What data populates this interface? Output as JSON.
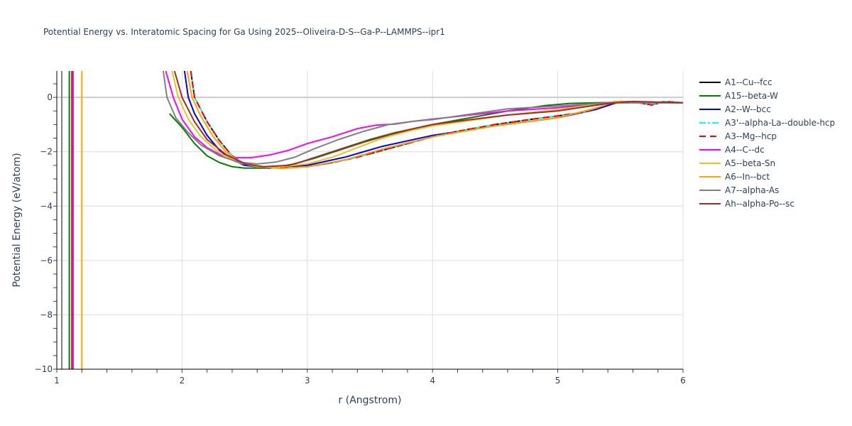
{
  "title": "Potential Energy vs. Interatomic Spacing for Ga Using 2025--Oliveira-D-S--Ga-P--LAMMPS--ipr1",
  "chart_data": {
    "type": "line",
    "title": "Potential Energy vs. Interatomic Spacing for Ga Using 2025--Oliveira-D-S--Ga-P--LAMMPS--ipr1",
    "xlabel": "r (Angstrom)",
    "ylabel": "Potential Energy (eV/atom)",
    "xlim": [
      1,
      6
    ],
    "ylim": [
      -10,
      0.97
    ],
    "x_ticks": [
      1,
      2,
      3,
      4,
      5,
      6
    ],
    "y_ticks": [
      0,
      -2,
      -4,
      -6,
      -8,
      -10
    ],
    "y_tick_labels": [
      "0",
      "−2",
      "−4",
      "−6",
      "−8",
      "−10"
    ],
    "grid": true,
    "legend_position": "right",
    "series": [
      {
        "name": "A1--Cu--fcc",
        "color": "#000000",
        "dash": "solid",
        "points": [
          [
            2.07,
            0.97
          ],
          [
            2.1,
            0
          ],
          [
            2.2,
            -0.9
          ],
          [
            2.3,
            -1.6
          ],
          [
            2.4,
            -2.15
          ],
          [
            2.5,
            -2.45
          ],
          [
            2.6,
            -2.55
          ],
          [
            2.8,
            -2.6
          ],
          [
            3.0,
            -2.55
          ],
          [
            3.2,
            -2.4
          ],
          [
            3.4,
            -2.2
          ],
          [
            3.6,
            -1.95
          ],
          [
            3.8,
            -1.7
          ],
          [
            4.0,
            -1.45
          ],
          [
            4.2,
            -1.25
          ],
          [
            4.5,
            -1.0
          ],
          [
            4.8,
            -0.8
          ],
          [
            5.0,
            -0.68
          ],
          [
            5.2,
            -0.55
          ],
          [
            5.4,
            -0.25
          ],
          [
            5.5,
            -0.15
          ],
          [
            5.65,
            -0.2
          ],
          [
            5.75,
            -0.28
          ],
          [
            5.85,
            -0.15
          ],
          [
            6.0,
            -0.2
          ]
        ]
      },
      {
        "name": "A15--beta-W",
        "color": "#008000",
        "dash": "solid",
        "vertical_x": 1.1,
        "points": [
          [
            1.9,
            -0.6
          ],
          [
            2.0,
            -1.1
          ],
          [
            2.1,
            -1.7
          ],
          [
            2.2,
            -2.15
          ],
          [
            2.3,
            -2.4
          ],
          [
            2.4,
            -2.55
          ],
          [
            2.5,
            -2.6
          ],
          [
            2.7,
            -2.6
          ],
          [
            2.9,
            -2.45
          ],
          [
            3.1,
            -2.15
          ],
          [
            3.3,
            -1.85
          ],
          [
            3.5,
            -1.55
          ],
          [
            3.7,
            -1.3
          ],
          [
            4.0,
            -1.0
          ],
          [
            4.3,
            -0.75
          ],
          [
            4.6,
            -0.5
          ],
          [
            4.9,
            -0.3
          ],
          [
            5.1,
            -0.22
          ],
          [
            5.5,
            -0.18
          ],
          [
            6.0,
            -0.2
          ]
        ]
      },
      {
        "name": "A2--W--bcc",
        "color": "#0000ff",
        "dash": "solid",
        "points": [
          [
            2.02,
            0.97
          ],
          [
            2.05,
            0
          ],
          [
            2.1,
            -0.6
          ],
          [
            2.2,
            -1.4
          ],
          [
            2.3,
            -1.95
          ],
          [
            2.4,
            -2.3
          ],
          [
            2.5,
            -2.5
          ],
          [
            2.7,
            -2.6
          ],
          [
            3.0,
            -2.5
          ],
          [
            3.3,
            -2.2
          ],
          [
            3.6,
            -1.8
          ],
          [
            4.0,
            -1.4
          ],
          [
            4.5,
            -1.05
          ],
          [
            5.0,
            -0.75
          ],
          [
            5.3,
            -0.45
          ],
          [
            5.5,
            -0.15
          ],
          [
            6.0,
            -0.2
          ]
        ]
      },
      {
        "name": "A3'--alpha-La--double-hcp",
        "color": "#00ffff",
        "dash": "dashdot",
        "points": [
          [
            2.07,
            0.97
          ],
          [
            2.1,
            0
          ],
          [
            2.2,
            -0.9
          ],
          [
            2.3,
            -1.6
          ],
          [
            2.4,
            -2.15
          ],
          [
            2.5,
            -2.45
          ],
          [
            2.6,
            -2.55
          ],
          [
            2.8,
            -2.6
          ],
          [
            3.0,
            -2.55
          ],
          [
            3.2,
            -2.4
          ],
          [
            3.4,
            -2.2
          ],
          [
            3.6,
            -1.95
          ],
          [
            3.8,
            -1.7
          ],
          [
            4.0,
            -1.45
          ],
          [
            4.2,
            -1.25
          ],
          [
            4.5,
            -1.0
          ],
          [
            4.8,
            -0.8
          ],
          [
            5.0,
            -0.68
          ],
          [
            5.2,
            -0.55
          ],
          [
            5.4,
            -0.25
          ],
          [
            5.5,
            -0.15
          ],
          [
            5.65,
            -0.2
          ],
          [
            5.75,
            -0.28
          ],
          [
            5.85,
            -0.15
          ],
          [
            6.0,
            -0.2
          ]
        ]
      },
      {
        "name": "A3--Mg--hcp",
        "color": "#ff0000",
        "dash": "dash",
        "points": [
          [
            2.07,
            0.97
          ],
          [
            2.1,
            0
          ],
          [
            2.2,
            -0.9
          ],
          [
            2.3,
            -1.6
          ],
          [
            2.4,
            -2.15
          ],
          [
            2.5,
            -2.45
          ],
          [
            2.6,
            -2.55
          ],
          [
            2.8,
            -2.6
          ],
          [
            3.0,
            -2.55
          ],
          [
            3.2,
            -2.4
          ],
          [
            3.4,
            -2.2
          ],
          [
            3.6,
            -1.95
          ],
          [
            3.8,
            -1.7
          ],
          [
            4.0,
            -1.45
          ],
          [
            4.2,
            -1.25
          ],
          [
            4.5,
            -1.0
          ],
          [
            4.8,
            -0.8
          ],
          [
            5.0,
            -0.68
          ],
          [
            5.2,
            -0.55
          ],
          [
            5.4,
            -0.25
          ],
          [
            5.5,
            -0.15
          ],
          [
            5.65,
            -0.2
          ],
          [
            5.75,
            -0.28
          ],
          [
            5.85,
            -0.15
          ],
          [
            6.0,
            -0.2
          ]
        ]
      },
      {
        "name": "A4--C--dc",
        "color": "#ff00ff",
        "dash": "solid",
        "vertical_x": 1.13,
        "points": [
          [
            1.87,
            0.97
          ],
          [
            1.93,
            0
          ],
          [
            2.0,
            -0.8
          ],
          [
            2.1,
            -1.45
          ],
          [
            2.2,
            -1.85
          ],
          [
            2.3,
            -2.1
          ],
          [
            2.4,
            -2.22
          ],
          [
            2.55,
            -2.22
          ],
          [
            2.7,
            -2.12
          ],
          [
            2.85,
            -1.95
          ],
          [
            3.0,
            -1.7
          ],
          [
            3.2,
            -1.45
          ],
          [
            3.4,
            -1.15
          ],
          [
            3.55,
            -1.02
          ],
          [
            3.7,
            -0.98
          ],
          [
            3.85,
            -0.88
          ],
          [
            4.0,
            -0.8
          ],
          [
            4.3,
            -0.65
          ],
          [
            4.6,
            -0.5
          ],
          [
            5.0,
            -0.38
          ],
          [
            5.4,
            -0.2
          ],
          [
            6.0,
            -0.2
          ]
        ]
      },
      {
        "name": "A5--beta-Sn",
        "color": "#e6c619",
        "dash": "solid",
        "points": [
          [
            1.92,
            0.97
          ],
          [
            1.97,
            0
          ],
          [
            2.05,
            -0.8
          ],
          [
            2.15,
            -1.45
          ],
          [
            2.3,
            -2.05
          ],
          [
            2.45,
            -2.4
          ],
          [
            2.6,
            -2.55
          ],
          [
            2.8,
            -2.55
          ],
          [
            3.0,
            -2.45
          ],
          [
            3.2,
            -2.2
          ],
          [
            3.4,
            -1.85
          ],
          [
            3.6,
            -1.5
          ],
          [
            3.8,
            -1.25
          ],
          [
            4.0,
            -1.05
          ],
          [
            4.3,
            -0.85
          ],
          [
            4.6,
            -0.65
          ],
          [
            5.0,
            -0.45
          ],
          [
            5.4,
            -0.2
          ],
          [
            6.0,
            -0.2
          ]
        ]
      },
      {
        "name": "A6--In--bct",
        "color": "#ffa500",
        "dash": "solid",
        "vertical_x": 1.2,
        "points": [
          [
            2.04,
            0.97
          ],
          [
            2.08,
            0
          ],
          [
            2.15,
            -0.7
          ],
          [
            2.25,
            -1.45
          ],
          [
            2.35,
            -2.0
          ],
          [
            2.45,
            -2.35
          ],
          [
            2.6,
            -2.55
          ],
          [
            2.8,
            -2.62
          ],
          [
            3.0,
            -2.55
          ],
          [
            3.3,
            -2.3
          ],
          [
            3.6,
            -1.9
          ],
          [
            4.0,
            -1.45
          ],
          [
            4.5,
            -1.05
          ],
          [
            5.0,
            -0.75
          ],
          [
            5.3,
            -0.4
          ],
          [
            5.45,
            -0.15
          ],
          [
            6.0,
            -0.2
          ]
        ]
      },
      {
        "name": "A7--alpha-As",
        "color": "#808080",
        "dash": "solid",
        "vertical_x": 1.04,
        "points": [
          [
            1.85,
            0.97
          ],
          [
            1.88,
            0
          ],
          [
            1.95,
            -0.75
          ],
          [
            2.05,
            -1.3
          ],
          [
            2.15,
            -1.75
          ],
          [
            2.3,
            -2.15
          ],
          [
            2.45,
            -2.38
          ],
          [
            2.6,
            -2.45
          ],
          [
            2.75,
            -2.38
          ],
          [
            2.9,
            -2.2
          ],
          [
            3.05,
            -1.9
          ],
          [
            3.25,
            -1.55
          ],
          [
            3.45,
            -1.25
          ],
          [
            3.65,
            -1.0
          ],
          [
            3.85,
            -0.88
          ],
          [
            4.0,
            -0.82
          ],
          [
            4.3,
            -0.62
          ],
          [
            4.6,
            -0.42
          ],
          [
            5.0,
            -0.32
          ],
          [
            5.4,
            -0.2
          ],
          [
            6.0,
            -0.2
          ]
        ]
      },
      {
        "name": "Ah--alpha-Po--sc",
        "color": "#a52a2a",
        "dash": "solid",
        "vertical_x": 1.12,
        "points": [
          [
            1.94,
            0.97
          ],
          [
            2.0,
            0
          ],
          [
            2.1,
            -0.9
          ],
          [
            2.2,
            -1.55
          ],
          [
            2.35,
            -2.1
          ],
          [
            2.5,
            -2.45
          ],
          [
            2.65,
            -2.55
          ],
          [
            2.85,
            -2.5
          ],
          [
            3.05,
            -2.25
          ],
          [
            3.25,
            -1.95
          ],
          [
            3.45,
            -1.65
          ],
          [
            3.65,
            -1.38
          ],
          [
            3.85,
            -1.15
          ],
          [
            4.0,
            -1.0
          ],
          [
            4.3,
            -0.82
          ],
          [
            4.6,
            -0.65
          ],
          [
            5.0,
            -0.5
          ],
          [
            5.4,
            -0.22
          ],
          [
            5.6,
            -0.15
          ],
          [
            6.0,
            -0.2
          ]
        ]
      }
    ]
  },
  "legend": [
    {
      "label": "A1--Cu--fcc",
      "color": "#000000",
      "dash": "solid"
    },
    {
      "label": "A15--beta-W",
      "color": "#008000",
      "dash": "solid"
    },
    {
      "label": "A2--W--bcc",
      "color": "#0000ff",
      "dash": "solid"
    },
    {
      "label": "A3'--alpha-La--double-hcp",
      "color": "#00ffff",
      "dash": "dashdot"
    },
    {
      "label": "A3--Mg--hcp",
      "color": "#ff0000",
      "dash": "dash"
    },
    {
      "label": "A4--C--dc",
      "color": "#ff00ff",
      "dash": "solid"
    },
    {
      "label": "A5--beta-Sn",
      "color": "#e6c619",
      "dash": "solid"
    },
    {
      "label": "A6--In--bct",
      "color": "#ffa500",
      "dash": "solid"
    },
    {
      "label": "A7--alpha-As",
      "color": "#808080",
      "dash": "solid"
    },
    {
      "label": "Ah--alpha-Po--sc",
      "color": "#a52a2a",
      "dash": "solid"
    }
  ]
}
